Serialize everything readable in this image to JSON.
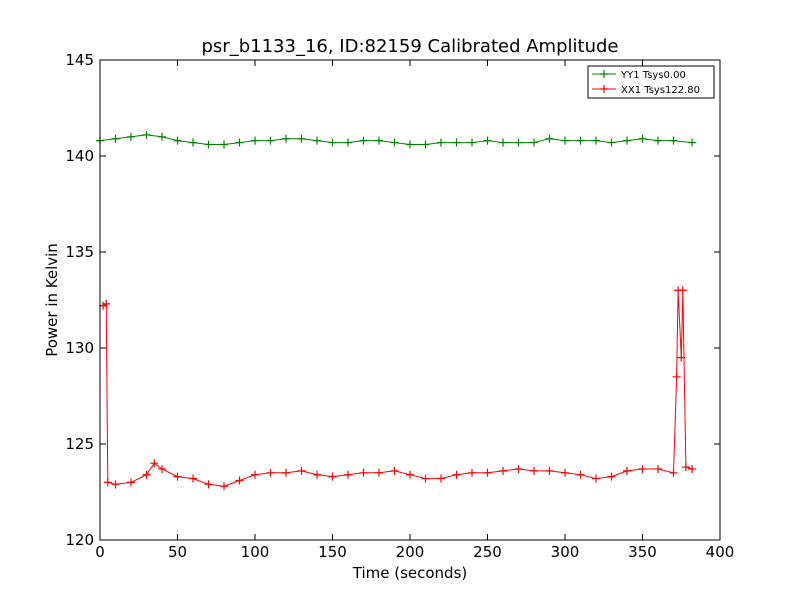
{
  "chart_data": {
    "type": "line",
    "title": "psr_b1133_16, ID:82159 Calibrated Amplitude",
    "xlabel": "Time (seconds)",
    "ylabel": "Power in Kelvin",
    "xlim": [
      0,
      400
    ],
    "ylim": [
      120,
      145
    ],
    "xticks": [
      0,
      50,
      100,
      150,
      200,
      250,
      300,
      350,
      400
    ],
    "yticks": [
      120,
      125,
      130,
      135,
      140,
      145
    ],
    "grid": false,
    "legend_position": "top-right",
    "series": [
      {
        "name": "YY1 Tsys0.00",
        "color": "#008000",
        "marker": "+",
        "x": [
          0,
          10,
          20,
          30,
          40,
          50,
          60,
          70,
          80,
          90,
          100,
          110,
          120,
          130,
          140,
          150,
          160,
          170,
          180,
          190,
          200,
          210,
          220,
          230,
          240,
          250,
          260,
          270,
          280,
          290,
          300,
          310,
          320,
          330,
          340,
          350,
          360,
          370,
          382
        ],
        "y": [
          140.8,
          140.9,
          141.0,
          141.1,
          141.0,
          140.8,
          140.7,
          140.6,
          140.6,
          140.7,
          140.8,
          140.8,
          140.9,
          140.9,
          140.8,
          140.7,
          140.7,
          140.8,
          140.8,
          140.7,
          140.6,
          140.6,
          140.7,
          140.7,
          140.7,
          140.8,
          140.7,
          140.7,
          140.7,
          140.9,
          140.8,
          140.8,
          140.8,
          140.7,
          140.8,
          140.9,
          140.8,
          140.8,
          140.7
        ]
      },
      {
        "name": "XX1 Tsys122.80",
        "color": "#ff0000",
        "marker": "+",
        "x": [
          2,
          4,
          5,
          10,
          20,
          30,
          35,
          40,
          50,
          60,
          70,
          80,
          90,
          100,
          110,
          120,
          130,
          140,
          150,
          160,
          170,
          180,
          190,
          200,
          210,
          220,
          230,
          240,
          250,
          260,
          270,
          280,
          290,
          300,
          310,
          320,
          330,
          340,
          350,
          360,
          370,
          372,
          373,
          375,
          376,
          378,
          382
        ],
        "y": [
          132.2,
          132.3,
          123.0,
          122.9,
          123.0,
          123.4,
          124.0,
          123.7,
          123.3,
          123.2,
          122.9,
          122.8,
          123.1,
          123.4,
          123.5,
          123.5,
          123.6,
          123.4,
          123.3,
          123.4,
          123.5,
          123.5,
          123.6,
          123.4,
          123.2,
          123.2,
          123.4,
          123.5,
          123.5,
          123.6,
          123.7,
          123.6,
          123.6,
          123.5,
          123.4,
          123.2,
          123.3,
          123.6,
          123.7,
          123.7,
          123.5,
          128.5,
          133.0,
          129.5,
          133.0,
          123.8,
          123.7
        ]
      }
    ]
  }
}
